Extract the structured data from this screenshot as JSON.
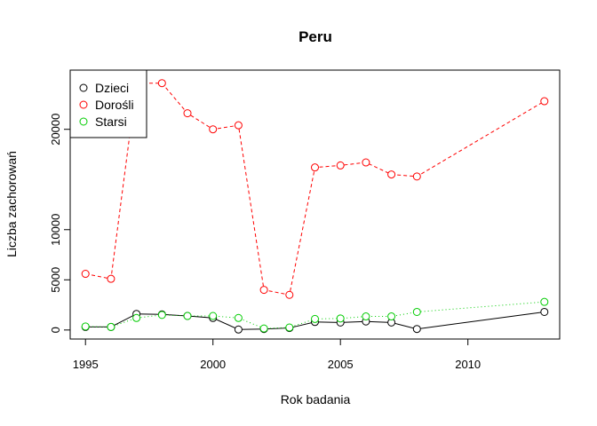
{
  "chart_data": {
    "type": "line",
    "title": "Peru",
    "xlabel": "Rok badania",
    "ylabel": "Liczba zachorowań",
    "xlim": [
      1994.4,
      2013.6
    ],
    "ylim": [
      -900,
      25900
    ],
    "x_ticks": [
      1995,
      2000,
      2005,
      2010
    ],
    "y_ticks": [
      0,
      5000,
      10000,
      20000
    ],
    "x_tick_labels": [
      "1995",
      "2000",
      "2005",
      "2010"
    ],
    "y_tick_labels": [
      "0",
      "5000",
      "10000",
      "20000"
    ],
    "legend": {
      "position": "top-left"
    },
    "x": [
      1995,
      1996,
      1997,
      1998,
      1999,
      2000,
      2001,
      2002,
      2003,
      2004,
      2005,
      2006,
      2007,
      2008,
      2013
    ],
    "series": [
      {
        "name": "Dzieci",
        "color": "#000000",
        "line_style": "solid",
        "values": [
          300,
          300,
          1600,
          1550,
          1400,
          1200,
          50,
          100,
          200,
          800,
          750,
          850,
          750,
          100,
          1800
        ]
      },
      {
        "name": "Dorośli",
        "color": "#ff0000",
        "line_style": "dashed",
        "values": [
          5600,
          5100,
          24600,
          24600,
          21600,
          20000,
          20400,
          4000,
          3500,
          16200,
          16400,
          16700,
          15500,
          15300,
          22800
        ]
      },
      {
        "name": "Starsi",
        "color": "#00cc00",
        "line_style": "dotted",
        "values": [
          350,
          300,
          1200,
          1500,
          1400,
          1400,
          1200,
          150,
          250,
          1100,
          1150,
          1350,
          1350,
          1800,
          2800
        ]
      }
    ]
  }
}
